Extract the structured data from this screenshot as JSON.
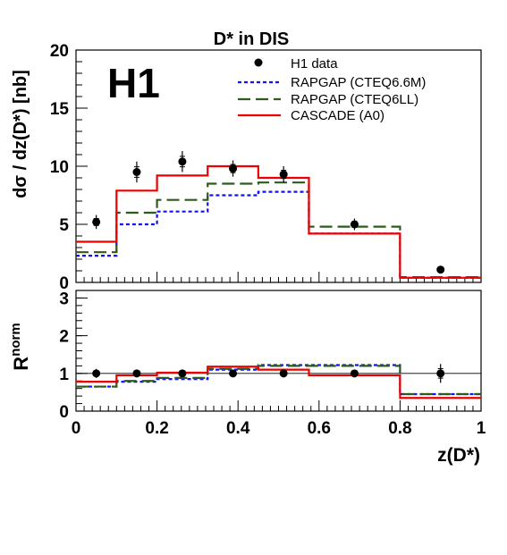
{
  "chart_data": [
    {
      "type": "line",
      "panel": "upper",
      "title": "D* in DIS",
      "logo": "H1",
      "ylabel": "dσ / dz(D*) [nb]",
      "ylim": [
        0,
        20
      ],
      "xlim": [
        0,
        1
      ],
      "ytick_labels": [
        "0",
        "5",
        "10",
        "15",
        "20"
      ],
      "bin_edges": [
        0,
        0.1,
        0.2,
        0.325,
        0.45,
        0.575,
        0.8,
        1.0
      ],
      "legend_position": "top-right",
      "data": {
        "name": "H1 data",
        "x": [
          0.05,
          0.15,
          0.2625,
          0.3875,
          0.5125,
          0.6875,
          0.9
        ],
        "y": [
          5.2,
          9.5,
          10.4,
          9.8,
          9.3,
          5.0,
          1.1
        ],
        "err": [
          0.6,
          0.9,
          0.9,
          0.7,
          0.7,
          0.5,
          0.2
        ]
      },
      "series": [
        {
          "name": "RAPGAP (CTEQ6.6M)",
          "style": "dotted",
          "color": "#1010ff",
          "values": [
            2.3,
            5.0,
            6.1,
            7.5,
            7.8,
            4.2,
            0.4
          ]
        },
        {
          "name": "RAPGAP (CTEQ6LL)",
          "style": "dashed",
          "color": "#2e5a1f",
          "values": [
            2.6,
            6.0,
            7.1,
            8.5,
            8.6,
            4.8,
            0.45
          ]
        },
        {
          "name": "CASCADE (A0)",
          "style": "solid",
          "color": "#ee0000",
          "values": [
            3.5,
            7.9,
            9.2,
            10.0,
            9.0,
            4.2,
            0.4
          ]
        }
      ]
    },
    {
      "type": "line",
      "panel": "lower",
      "ylabel_main": "R",
      "ylabel_sup": "norm",
      "xlabel": "z(D*)",
      "ylim": [
        0,
        3.2
      ],
      "xlim": [
        0,
        1
      ],
      "ytick_labels": [
        "0",
        "1",
        "2",
        "3"
      ],
      "xtick_labels": [
        "0",
        "0.2",
        "0.4",
        "0.6",
        "0.8",
        "1"
      ],
      "reference_line": 1,
      "data": {
        "name": "H1 data",
        "x": [
          0.05,
          0.15,
          0.2625,
          0.3875,
          0.5125,
          0.6875,
          0.9
        ],
        "y": [
          1.0,
          1.0,
          1.0,
          1.0,
          1.0,
          1.0,
          1.0
        ],
        "err": [
          0.12,
          0.09,
          0.09,
          0.07,
          0.07,
          0.1,
          0.25
        ]
      },
      "series": [
        {
          "name": "RAPGAP (CTEQ6.6M)",
          "style": "dotted",
          "color": "#1010ff",
          "values": [
            0.65,
            0.78,
            0.85,
            1.1,
            1.22,
            1.22,
            0.45
          ]
        },
        {
          "name": "RAPGAP (CTEQ6LL)",
          "style": "dashed",
          "color": "#2e5a1f",
          "values": [
            0.65,
            0.8,
            0.88,
            1.12,
            1.2,
            1.2,
            0.45
          ]
        },
        {
          "name": "CASCADE (A0)",
          "style": "solid",
          "color": "#ee0000",
          "values": [
            0.78,
            0.95,
            1.02,
            1.18,
            1.1,
            0.95,
            0.35
          ]
        }
      ]
    }
  ]
}
